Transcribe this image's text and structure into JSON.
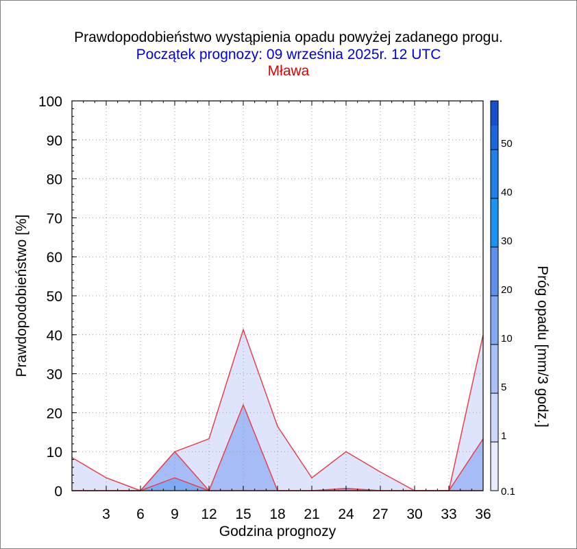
{
  "title": "Prawdopodobieństwo wystąpienia opadu powyżej zadanego progu.",
  "subtitle": "Początek prognozy: 09 września 2025r. 12 UTC",
  "location": "Mława",
  "colors": {
    "title": "#000000",
    "subtitle": "#0000dd",
    "location": "#dd0000",
    "outline": "#e8404a",
    "grid": "#9a9a9a"
  },
  "chart_data": {
    "type": "area",
    "xlabel": "Godzina prognozy",
    "ylabel": "Prawdopodobieństwo [%]",
    "xlim": [
      0,
      36
    ],
    "ylim": [
      0,
      100
    ],
    "xticks": [
      3,
      6,
      9,
      12,
      15,
      18,
      21,
      24,
      27,
      30,
      33,
      36
    ],
    "yticks": [
      0,
      10,
      20,
      30,
      40,
      50,
      60,
      70,
      80,
      90,
      100
    ],
    "grid": true,
    "x": [
      0,
      3,
      6,
      9,
      12,
      15,
      18,
      21,
      24,
      27,
      30,
      33,
      36
    ],
    "series": [
      {
        "name": "0.1",
        "color": "#dde4fc",
        "values": [
          8.5,
          3.3,
          0,
          10,
          13.3,
          41.3,
          16.5,
          3.3,
          10,
          4.8,
          0,
          0,
          40
        ]
      },
      {
        "name": "1",
        "color": "#a6bcf6",
        "values": [
          0,
          0,
          0,
          10,
          0,
          22,
          0,
          0,
          0,
          0,
          0,
          0,
          13.3
        ]
      },
      {
        "name": "5",
        "color": "#7faaf5",
        "values": [
          0,
          0,
          0,
          3.3,
          0,
          0,
          0,
          0,
          0.6,
          0,
          0,
          0,
          0
        ]
      }
    ],
    "colorbar": {
      "label": "Próg opadu [mm/3 godz.]",
      "tick_labels": [
        "0.1",
        "1",
        "5",
        "10",
        "20",
        "30",
        "40",
        "50"
      ],
      "colors": [
        "#e6ecfd",
        "#ccd8fb",
        "#a9c0f6",
        "#84a8f3",
        "#5f90f0",
        "#1a94f2",
        "#207fe8",
        "#1a67dc",
        "#1650cf",
        "#1238b8"
      ]
    }
  }
}
